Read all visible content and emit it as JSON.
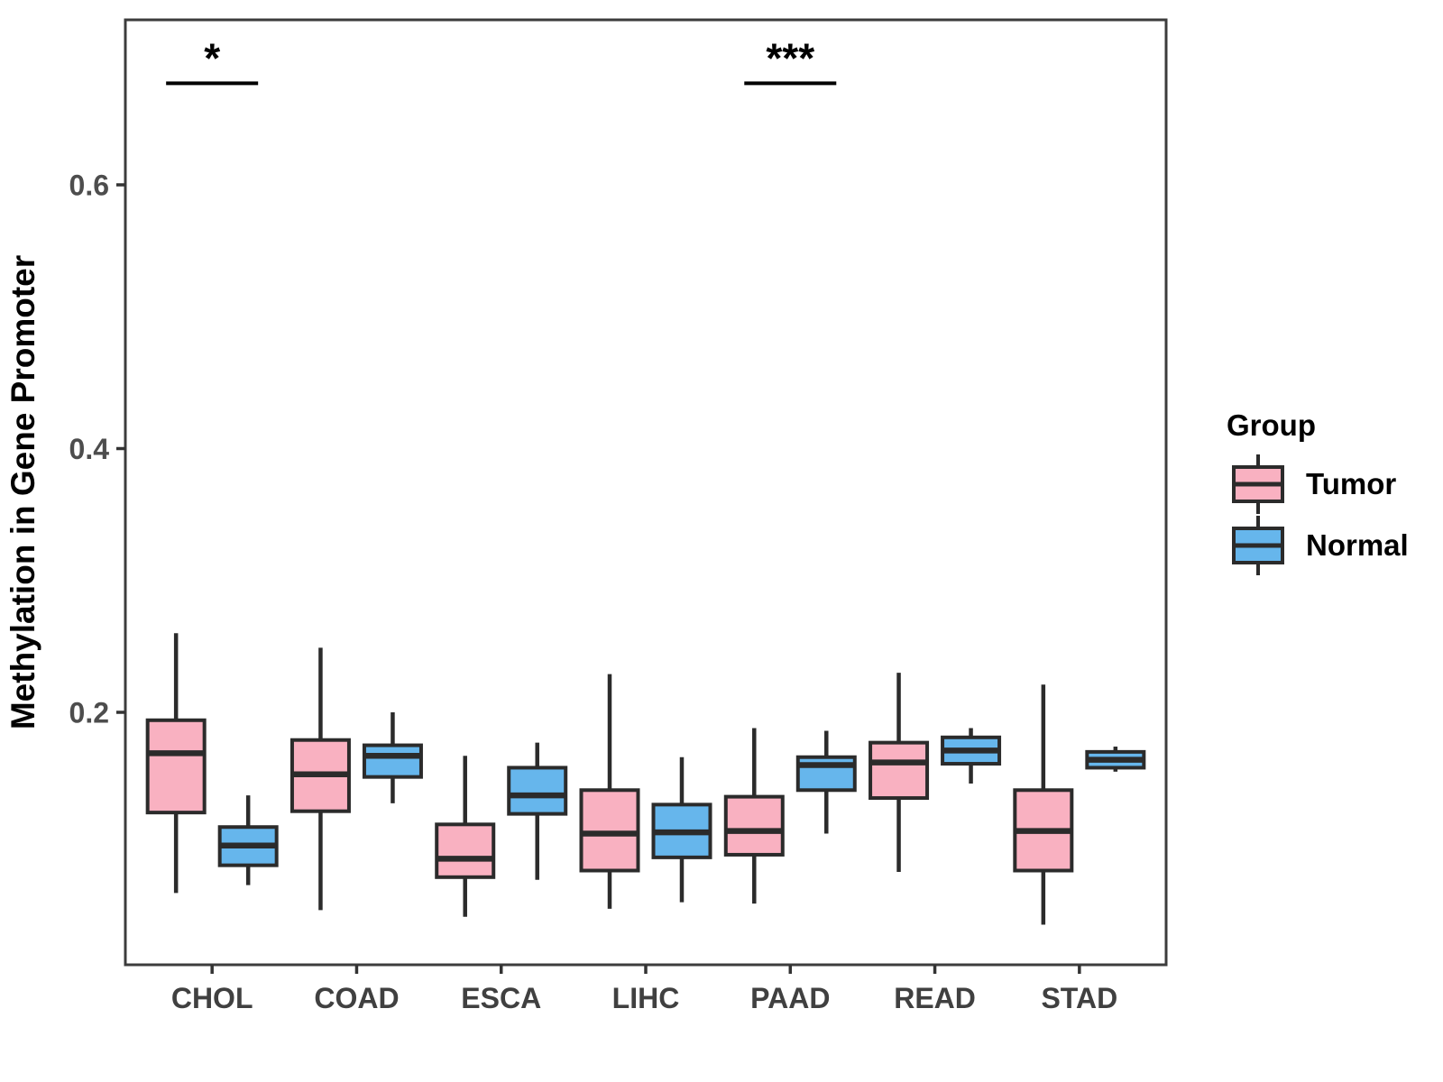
{
  "chart_data": {
    "type": "boxplot",
    "title": "",
    "xlabel": "",
    "ylabel": "Methylation in Gene Promoter",
    "ylim": [
      0.01,
      0.725
    ],
    "yticks": [
      "0.2",
      "0.4",
      "0.6"
    ],
    "ytick_values": [
      0.2,
      0.4,
      0.6
    ],
    "grid": "off",
    "categories": [
      "CHOL",
      "COAD",
      "ESCA",
      "LIHC",
      "PAAD",
      "READ",
      "STAD"
    ],
    "groups": [
      {
        "name": "Tumor",
        "color": "#F9B1C1"
      },
      {
        "name": "Normal",
        "color": "#66B6EC"
      }
    ],
    "series": [
      {
        "category": "CHOL",
        "group": "Tumor",
        "min": 0.063,
        "q1": 0.124,
        "median": 0.169,
        "q3": 0.194,
        "max": 0.26
      },
      {
        "category": "CHOL",
        "group": "Normal",
        "min": 0.069,
        "q1": 0.084,
        "median": 0.099,
        "q3": 0.113,
        "max": 0.137
      },
      {
        "category": "COAD",
        "group": "Tumor",
        "min": 0.05,
        "q1": 0.125,
        "median": 0.153,
        "q3": 0.179,
        "max": 0.249
      },
      {
        "category": "COAD",
        "group": "Normal",
        "min": 0.131,
        "q1": 0.151,
        "median": 0.167,
        "q3": 0.175,
        "max": 0.2
      },
      {
        "category": "ESCA",
        "group": "Tumor",
        "min": 0.045,
        "q1": 0.075,
        "median": 0.089,
        "q3": 0.115,
        "max": 0.167
      },
      {
        "category": "ESCA",
        "group": "Normal",
        "min": 0.073,
        "q1": 0.123,
        "median": 0.137,
        "q3": 0.158,
        "max": 0.177
      },
      {
        "category": "LIHC",
        "group": "Tumor",
        "min": 0.051,
        "q1": 0.08,
        "median": 0.108,
        "q3": 0.141,
        "max": 0.229
      },
      {
        "category": "LIHC",
        "group": "Normal",
        "min": 0.056,
        "q1": 0.09,
        "median": 0.109,
        "q3": 0.13,
        "max": 0.166
      },
      {
        "category": "PAAD",
        "group": "Tumor",
        "min": 0.055,
        "q1": 0.092,
        "median": 0.11,
        "q3": 0.136,
        "max": 0.188
      },
      {
        "category": "PAAD",
        "group": "Normal",
        "min": 0.108,
        "q1": 0.141,
        "median": 0.16,
        "q3": 0.166,
        "max": 0.186
      },
      {
        "category": "READ",
        "group": "Tumor",
        "min": 0.079,
        "q1": 0.135,
        "median": 0.162,
        "q3": 0.177,
        "max": 0.23
      },
      {
        "category": "READ",
        "group": "Normal",
        "min": 0.146,
        "q1": 0.161,
        "median": 0.171,
        "q3": 0.181,
        "max": 0.188
      },
      {
        "category": "STAD",
        "group": "Tumor",
        "min": 0.039,
        "q1": 0.08,
        "median": 0.11,
        "q3": 0.141,
        "max": 0.221
      },
      {
        "category": "STAD",
        "group": "Normal",
        "min": 0.155,
        "q1": 0.158,
        "median": 0.164,
        "q3": 0.17,
        "max": 0.174
      }
    ],
    "annotations": [
      {
        "category": "CHOL",
        "label": "*",
        "bar_y_value": 0.677
      },
      {
        "category": "PAAD",
        "label": "***",
        "bar_y_value": 0.677
      }
    ],
    "legend": {
      "title": "Group",
      "entries": [
        "Tumor",
        "Normal"
      ],
      "position": "right"
    },
    "colors": {
      "box_stroke": "#2B2B2B",
      "panel_border": "#3C3C3C",
      "axis_tick": "#333333",
      "axis_text": "#4D4D4D",
      "x_label_text": "#404040",
      "axis_title": "#000000",
      "annotation": "#000000",
      "background": "#FFFFFF"
    }
  }
}
